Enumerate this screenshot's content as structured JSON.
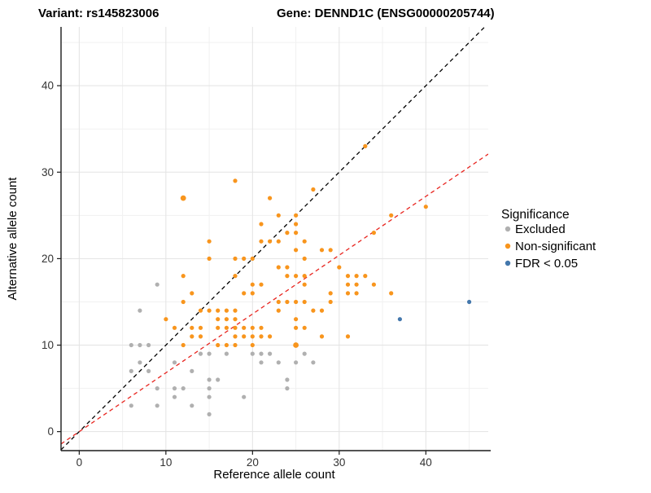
{
  "window": {
    "title_left": "Variant: rs145823006",
    "title_right": "Gene: DENND1C (ENSG00000205744)"
  },
  "chart_data": {
    "type": "scatter",
    "title_left": "Variant: rs145823006",
    "title_right": "Gene: DENND1C (ENSG00000205744)",
    "xlabel": "Reference allele count",
    "ylabel": "Alternative allele count",
    "xlim": [
      -2.1,
      47.2
    ],
    "ylim": [
      -2.2,
      46.8
    ],
    "x_ticks": [
      0,
      10,
      20,
      30,
      40
    ],
    "y_ticks": [
      0,
      10,
      20,
      30,
      40
    ],
    "x_minor_ticks": [
      5,
      15,
      25,
      35,
      45
    ],
    "y_minor_ticks": [
      5,
      15,
      25,
      35,
      45
    ],
    "grid": true,
    "legend_title": "Significance",
    "legend_position": "right",
    "colors": {
      "excluded": "#B0B0B0",
      "non_significant": "#F8951D",
      "fdr": "#4377AC",
      "identity_line": "#000000",
      "fit_line": "#E8251F",
      "major_grid": "#E3E3E3",
      "minor_grid": "#F1F1F1",
      "axis_line": "#1A1A1A"
    },
    "series": [
      {
        "name": "Excluded",
        "color": "#B0B0B0",
        "points": [
          [
            9,
            17
          ],
          [
            7,
            14
          ],
          [
            6,
            10
          ],
          [
            7,
            10
          ],
          [
            8,
            10
          ],
          [
            14,
            9
          ],
          [
            15,
            9
          ],
          [
            17,
            9
          ],
          [
            20,
            9
          ],
          [
            21,
            9
          ],
          [
            22,
            9
          ],
          [
            26,
            9
          ],
          [
            7,
            8
          ],
          [
            11,
            8
          ],
          [
            21,
            8
          ],
          [
            23,
            8
          ],
          [
            25,
            8
          ],
          [
            27,
            8
          ],
          [
            6,
            7
          ],
          [
            8,
            7
          ],
          [
            13,
            7
          ],
          [
            15,
            6
          ],
          [
            16,
            6
          ],
          [
            24,
            6
          ],
          [
            9,
            5
          ],
          [
            11,
            5
          ],
          [
            12,
            5
          ],
          [
            15,
            5
          ],
          [
            24,
            5
          ],
          [
            11,
            4
          ],
          [
            15,
            4
          ],
          [
            19,
            4
          ],
          [
            6,
            3
          ],
          [
            9,
            3
          ],
          [
            13,
            3
          ],
          [
            15,
            2
          ]
        ]
      },
      {
        "name": "Non-significant",
        "color": "#F8951D",
        "points": [
          [
            33,
            33
          ],
          [
            18,
            29
          ],
          [
            27,
            28
          ],
          [
            12,
            27
          ],
          [
            22,
            27
          ],
          [
            40,
            26
          ],
          [
            23,
            25
          ],
          [
            25,
            25
          ],
          [
            36,
            25
          ],
          [
            21,
            24
          ],
          [
            25,
            24
          ],
          [
            24,
            23
          ],
          [
            25,
            23
          ],
          [
            34,
            23
          ],
          [
            15,
            22
          ],
          [
            21,
            22
          ],
          [
            22,
            22
          ],
          [
            23,
            22
          ],
          [
            26,
            22
          ],
          [
            25,
            21
          ],
          [
            28,
            21
          ],
          [
            29,
            21
          ],
          [
            15,
            20
          ],
          [
            18,
            20
          ],
          [
            19,
            20
          ],
          [
            20,
            20
          ],
          [
            26,
            20
          ],
          [
            23,
            19
          ],
          [
            24,
            19
          ],
          [
            30,
            19
          ],
          [
            12,
            18
          ],
          [
            18,
            18
          ],
          [
            24,
            18
          ],
          [
            25,
            18
          ],
          [
            26,
            18
          ],
          [
            31,
            18
          ],
          [
            32,
            18
          ],
          [
            33,
            18
          ],
          [
            20,
            17
          ],
          [
            21,
            17
          ],
          [
            26,
            17
          ],
          [
            31,
            17
          ],
          [
            32,
            17
          ],
          [
            34,
            17
          ],
          [
            13,
            16
          ],
          [
            19,
            16
          ],
          [
            20,
            16
          ],
          [
            29,
            16
          ],
          [
            31,
            16
          ],
          [
            32,
            16
          ],
          [
            36,
            16
          ],
          [
            12,
            15
          ],
          [
            23,
            15
          ],
          [
            24,
            15
          ],
          [
            25,
            15
          ],
          [
            26,
            15
          ],
          [
            29,
            15
          ],
          [
            14,
            14
          ],
          [
            15,
            14
          ],
          [
            16,
            14
          ],
          [
            17,
            14
          ],
          [
            18,
            14
          ],
          [
            23,
            14
          ],
          [
            27,
            14
          ],
          [
            28,
            14
          ],
          [
            10,
            13
          ],
          [
            16,
            13
          ],
          [
            17,
            13
          ],
          [
            18,
            13
          ],
          [
            25,
            13
          ],
          [
            11,
            12
          ],
          [
            13,
            12
          ],
          [
            14,
            12
          ],
          [
            16,
            12
          ],
          [
            17,
            12
          ],
          [
            18,
            12
          ],
          [
            19,
            12
          ],
          [
            20,
            12
          ],
          [
            21,
            12
          ],
          [
            25,
            12
          ],
          [
            26,
            12
          ],
          [
            13,
            11
          ],
          [
            14,
            11
          ],
          [
            18,
            11
          ],
          [
            19,
            11
          ],
          [
            20,
            11
          ],
          [
            21,
            11
          ],
          [
            22,
            11
          ],
          [
            28,
            11
          ],
          [
            31,
            11
          ],
          [
            12,
            10
          ],
          [
            16,
            10
          ],
          [
            17,
            10
          ],
          [
            18,
            10
          ],
          [
            20,
            10
          ],
          [
            25,
            10
          ]
        ]
      },
      {
        "name": "FDR < 0.05",
        "color": "#4377AC",
        "points": [
          [
            37,
            13
          ],
          [
            45,
            15
          ]
        ]
      }
    ],
    "large_points": [
      [
        12,
        27
      ],
      [
        25,
        10
      ]
    ],
    "lines": [
      {
        "name": "identity",
        "slope": 1,
        "intercept": 0,
        "color": "#000000",
        "dash": "5 4"
      },
      {
        "name": "fit",
        "slope": 0.68,
        "intercept": 0,
        "color": "#E8251F",
        "dash": "5 4"
      }
    ]
  }
}
